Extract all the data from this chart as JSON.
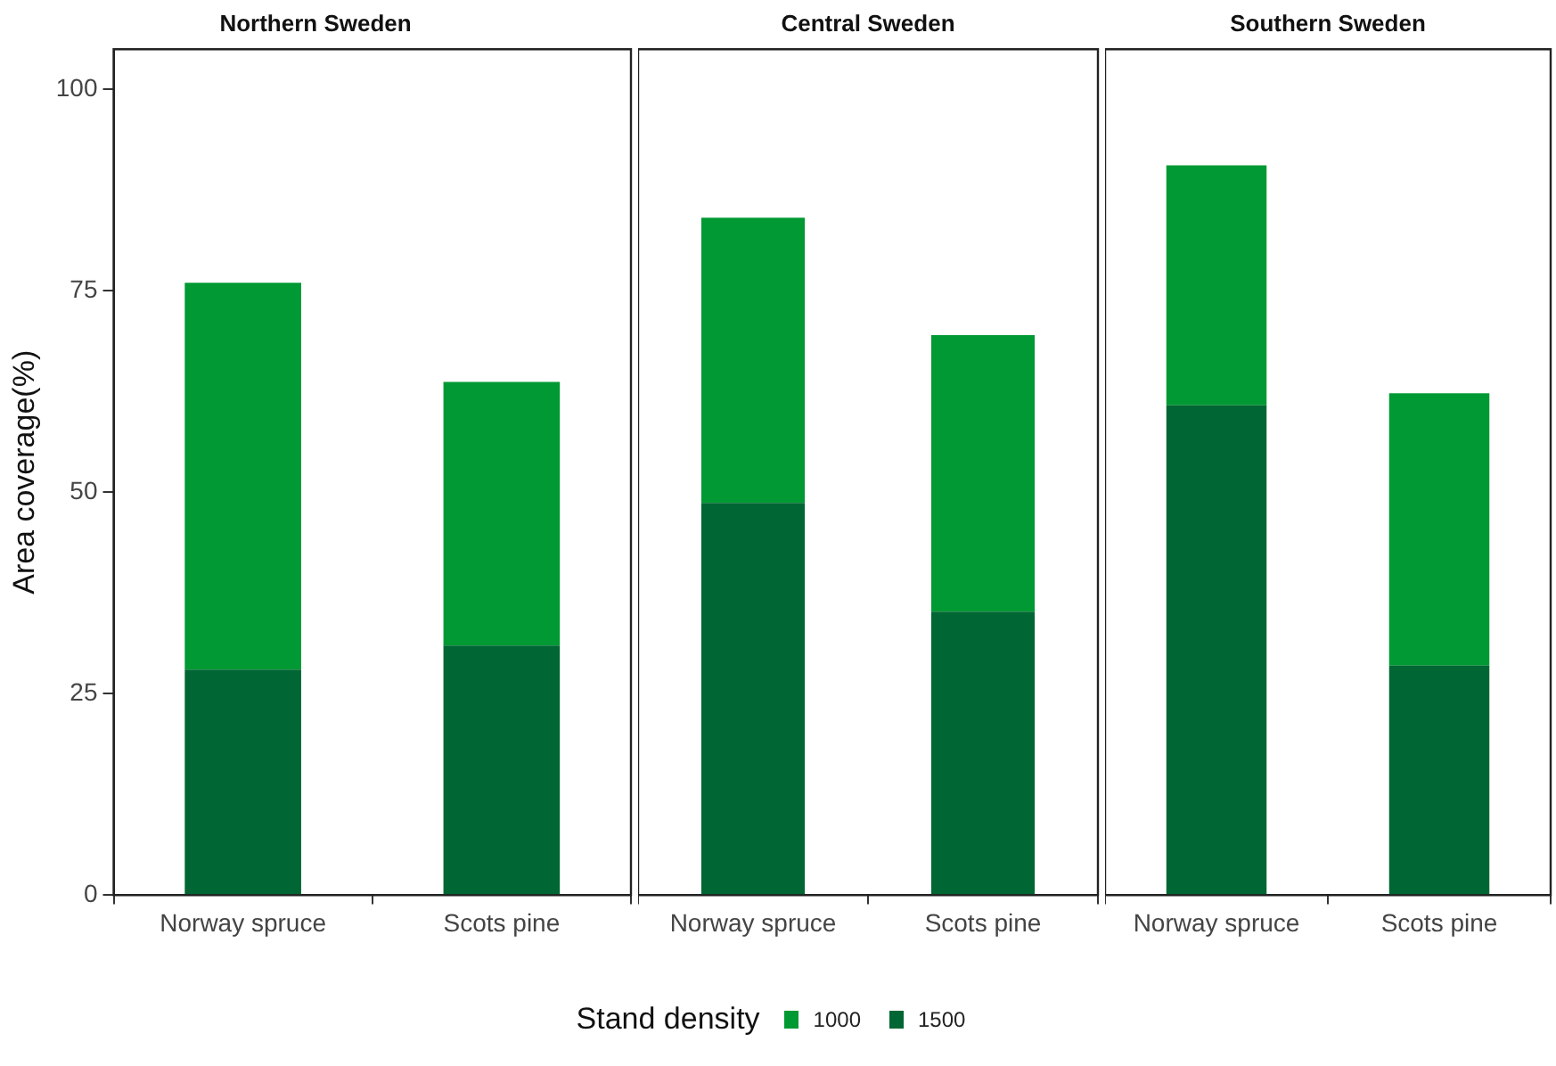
{
  "chart_data": [
    {
      "type": "bar",
      "title": "Northern Sweden",
      "ylabel": "Area coverage(%)",
      "legend_title": "Stand density",
      "legend": "bottom",
      "stacked": true,
      "grid": false,
      "categories": [
        "Norway spruce",
        "Scots pine"
      ],
      "ylim": [
        0,
        105
      ],
      "yticks": [
        0,
        25,
        50,
        75,
        100
      ],
      "series": [
        {
          "name": "1500",
          "color": "#006633",
          "values": [
            28,
            31
          ]
        },
        {
          "name": "1000",
          "color": "#009933",
          "values": [
            48,
            32.7
          ]
        }
      ]
    },
    {
      "type": "bar",
      "title": "Central Sweden",
      "stacked": true,
      "grid": false,
      "tick_labels": "x",
      "categories": [
        "Norway spruce",
        "Scots pine"
      ],
      "ylim": [
        0,
        105
      ],
      "yticks": [
        0,
        25,
        50,
        75,
        100
      ],
      "series": [
        {
          "name": "1500",
          "color": "#006633",
          "values": [
            48.7,
            35.2
          ]
        },
        {
          "name": "1000",
          "color": "#009933",
          "values": [
            35.4,
            34.3
          ]
        }
      ]
    },
    {
      "type": "bar",
      "title": "Southern Sweden",
      "stacked": true,
      "grid": false,
      "tick_labels": "x",
      "categories": [
        "Norway spruce",
        "Scots pine"
      ],
      "ylim": [
        0,
        105
      ],
      "yticks": [
        0,
        25,
        50,
        75,
        100
      ],
      "series": [
        {
          "name": "1500",
          "color": "#006633",
          "values": [
            60.8,
            28.5
          ]
        },
        {
          "name": "1000",
          "color": "#009933",
          "values": [
            29.8,
            33.8
          ]
        }
      ]
    }
  ]
}
